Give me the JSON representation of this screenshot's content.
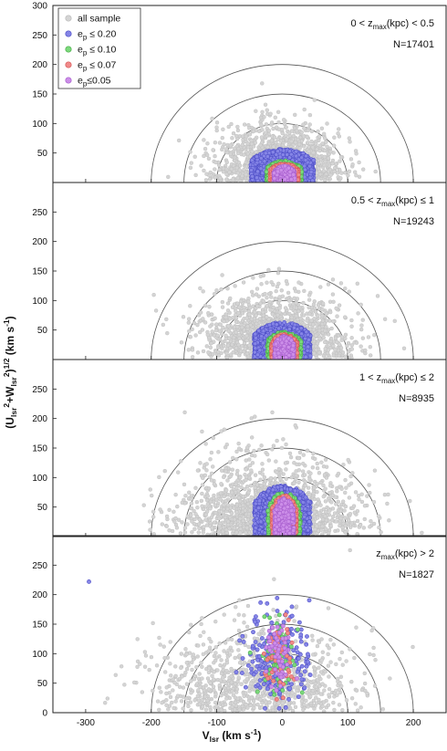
{
  "chart_data": {
    "type": "scatter",
    "xlabel": "V",
    "xlabel_sub": "lsr",
    "xlabel_unit": " (km s",
    "xlabel_unit_sup": "-1",
    "xlabel_unit_end": ")",
    "ylabel": "(U",
    "ylabel_p1_sub": "lsr",
    "ylabel_p1_sup": "2",
    "ylabel_p2": "+W",
    "ylabel_p2_sub": "lsr",
    "ylabel_p2_sup": "2",
    "ylabel_p3": ")",
    "ylabel_p3_sup": "1/2",
    "ylabel_unit": " (km s",
    "ylabel_unit_sup": "-1",
    "ylabel_unit_end": ")",
    "xlim": [
      -350,
      250
    ],
    "ylim": [
      0,
      300
    ],
    "x_ticks": [
      -300,
      -200,
      -100,
      0,
      100,
      200
    ],
    "y_ticks_top": [
      50,
      100,
      150,
      200,
      250,
      300
    ],
    "y_ticks_mid": [
      50,
      100,
      150,
      200,
      250
    ],
    "y_ticks_bottom": [
      0,
      50,
      100,
      150,
      200,
      250
    ],
    "reference_circle_radii": [
      100,
      150,
      200
    ],
    "reference_circle_center": [
      0,
      0
    ],
    "legend_position": "top-left",
    "legend": [
      {
        "label": "all sample",
        "color": "#d4d4d4",
        "stroke": "#bbbbbb"
      },
      {
        "label": "e",
        "sub": "p",
        "rel": " ≤ 0.20",
        "color": "#8585e6",
        "stroke": "#5050c8"
      },
      {
        "label": "e",
        "sub": "p",
        "rel": " ≤ 0.10",
        "color": "#7cd97c",
        "stroke": "#4caf4c"
      },
      {
        "label": "e",
        "sub": "p",
        "rel": " ≤ 0.07",
        "color": "#f08a8a",
        "stroke": "#d85a5a"
      },
      {
        "label": "e",
        "sub": "p",
        "rel": "≤0.05",
        "color": "#cc8ee8",
        "stroke": "#a960cf"
      }
    ],
    "panels": [
      {
        "label_pre": "0 < z",
        "label_sub": "max",
        "label_post": "(kpc) < 0.5",
        "n_label": "N=17401",
        "cloud": {
          "all": {
            "sigma_x": 45,
            "sigma_y": 45,
            "center_x": -5
          },
          "e020": {
            "half_width": 48,
            "height": 57,
            "center_x": 0
          },
          "e010": {
            "half_width": 27,
            "height": 37,
            "center_x": 3
          },
          "e007": {
            "half_width": 22,
            "height": 32,
            "center_x": 3
          },
          "e005": {
            "half_width": 16,
            "height": 28,
            "center_x": 3
          }
        }
      },
      {
        "label_pre": "0.5 < z",
        "label_sub": "max",
        "label_post": "(kpc) ≤ 1",
        "n_label": "N=19243",
        "cloud": {
          "all": {
            "sigma_x": 55,
            "sigma_y": 55,
            "center_x": -10
          },
          "e020": {
            "half_width": 43,
            "height": 63,
            "center_x": 0
          },
          "e010": {
            "half_width": 26,
            "height": 47,
            "center_x": 3
          },
          "e007": {
            "half_width": 20,
            "height": 43,
            "center_x": 3
          },
          "e005": {
            "half_width": 15,
            "height": 40,
            "center_x": 3
          }
        }
      },
      {
        "label_pre": "1 < z",
        "label_sub": "max",
        "label_post": "(kpc) ≤ 2",
        "n_label": "N=8935",
        "cloud": {
          "all": {
            "sigma_x": 65,
            "sigma_y": 65,
            "center_x": -20
          },
          "e020": {
            "half_width": 43,
            "height": 87,
            "center_x": 0
          },
          "e010": {
            "half_width": 25,
            "height": 75,
            "center_x": 3
          },
          "e007": {
            "half_width": 19,
            "height": 70,
            "center_x": 3
          },
          "e005": {
            "half_width": 15,
            "height": 65,
            "center_x": 3
          }
        }
      },
      {
        "label_pre": "z",
        "label_sub": "max",
        "label_post": "(kpc) > 2",
        "n_label": "N=1827",
        "cloud": {
          "all": {
            "sigma_x": 75,
            "sigma_y": 70,
            "center_x": -40
          },
          "e020": {
            "half_width": 40,
            "height": 160,
            "center_x": -5
          },
          "e010": {
            "half_width": 25,
            "height": 140,
            "center_x": -5
          },
          "e007": {
            "half_width": 20,
            "height": 120,
            "center_x": -5
          },
          "e005": {
            "half_width": 15,
            "height": 110,
            "center_x": -5
          }
        },
        "outlier": {
          "x": -295,
          "y": 222
        }
      }
    ]
  }
}
